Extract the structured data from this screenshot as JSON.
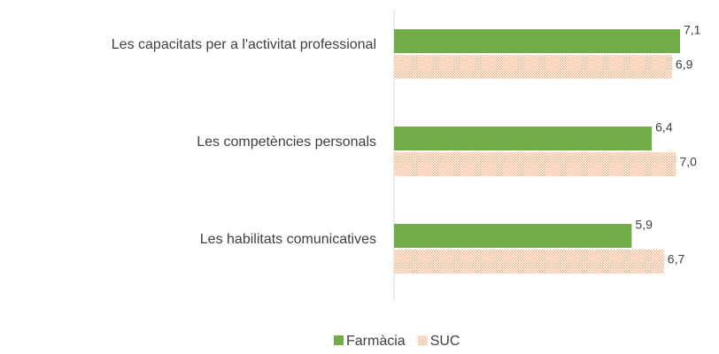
{
  "chart_data": {
    "type": "bar",
    "orientation": "horizontal",
    "categories": [
      "Les capacitats per a l'activitat professional",
      "Les competències personals",
      "Les habilitats comunicatives"
    ],
    "series": [
      {
        "name": "Farmàcia",
        "color": "#70ad47",
        "values": [
          7.1,
          6.4,
          5.9
        ],
        "value_labels": [
          "7,1",
          "6,4",
          "5,9"
        ]
      },
      {
        "name": "SUC",
        "color": "#f4b183",
        "fill_pattern": "dots",
        "values": [
          6.9,
          7.0,
          6.7
        ],
        "value_labels": [
          "6,9",
          "7,0",
          "6,7"
        ]
      }
    ],
    "legend": "bottom"
  }
}
